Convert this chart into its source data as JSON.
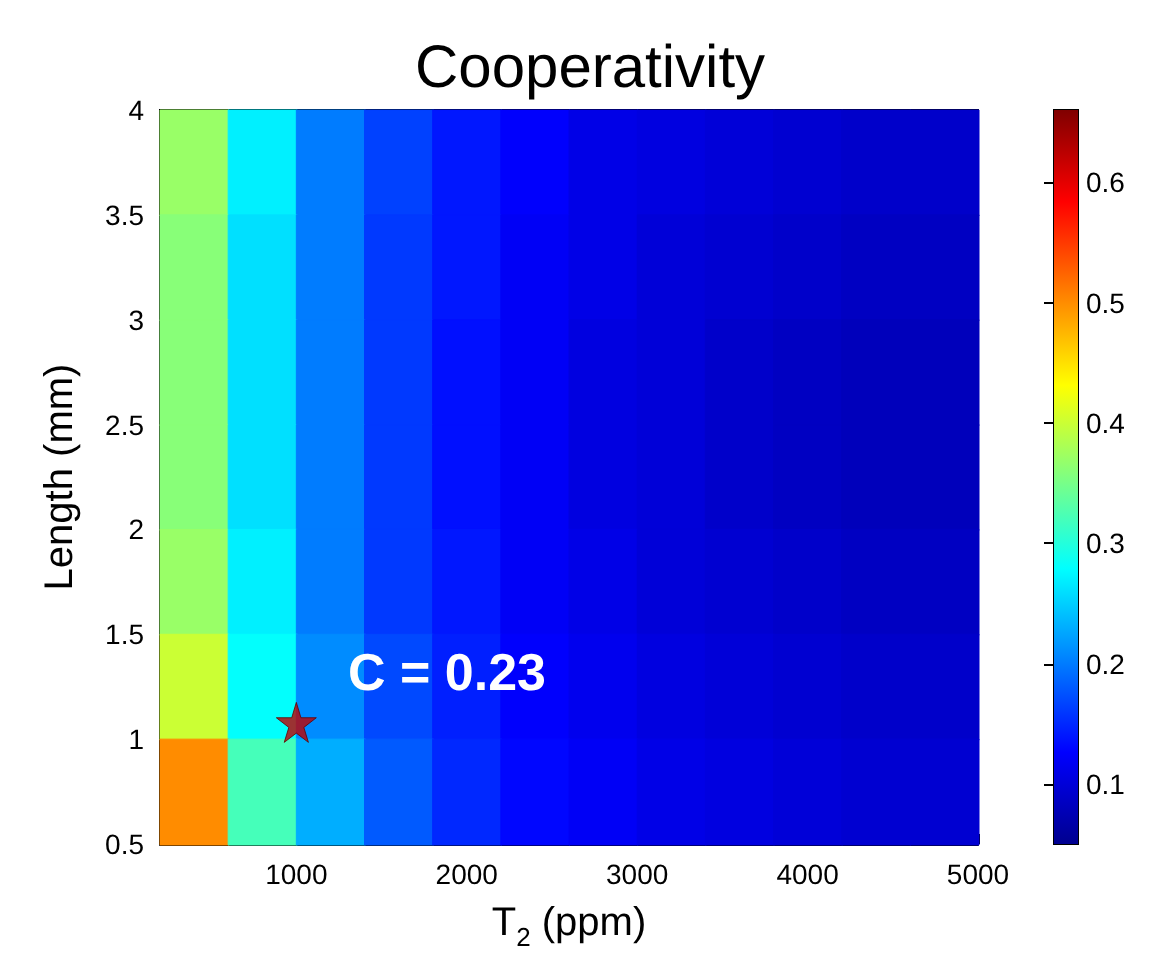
{
  "chart_data": {
    "type": "heatmap",
    "title": "Cooperativity",
    "xlabel": "T$_{2}$ (ppm)",
    "ylabel": "Length (mm)",
    "x": [
      400,
      800,
      1200,
      1600,
      2000,
      2400,
      2800,
      3200,
      3600,
      4000,
      4400,
      4800
    ],
    "y": [
      3.75,
      3.25,
      2.75,
      2.25,
      1.75,
      1.25,
      0.75
    ],
    "xlim": [
      200,
      5000
    ],
    "xticks": [
      1000,
      2000,
      3000,
      4000,
      5000
    ],
    "ylim": [
      0.5,
      4
    ],
    "yticks": [
      0.5,
      1,
      1.5,
      2,
      2.5,
      3,
      3.5,
      4
    ],
    "clim": [
      0.05,
      0.66
    ],
    "cticks": [
      0.1,
      0.2,
      0.3,
      0.4,
      0.5,
      0.6
    ],
    "cells": [
      [
        0.37,
        0.27,
        0.2,
        0.165,
        0.14,
        0.125,
        0.11,
        0.105,
        0.1,
        0.095,
        0.09,
        0.09
      ],
      [
        0.36,
        0.26,
        0.2,
        0.16,
        0.14,
        0.12,
        0.11,
        0.1,
        0.095,
        0.09,
        0.085,
        0.085
      ],
      [
        0.36,
        0.26,
        0.2,
        0.16,
        0.135,
        0.12,
        0.105,
        0.1,
        0.09,
        0.085,
        0.08,
        0.08
      ],
      [
        0.36,
        0.26,
        0.2,
        0.16,
        0.135,
        0.12,
        0.105,
        0.1,
        0.09,
        0.085,
        0.08,
        0.08
      ],
      [
        0.37,
        0.27,
        0.2,
        0.16,
        0.14,
        0.12,
        0.11,
        0.1,
        0.095,
        0.09,
        0.085,
        0.085
      ],
      [
        0.4,
        0.28,
        0.21,
        0.17,
        0.145,
        0.125,
        0.115,
        0.105,
        0.1,
        0.095,
        0.09,
        0.09
      ],
      [
        0.5,
        0.32,
        0.23,
        0.18,
        0.15,
        0.13,
        0.12,
        0.11,
        0.105,
        0.1,
        0.095,
        0.095
      ]
    ],
    "series": [
      {
        "type": "scatter",
        "x": [
          1000
        ],
        "values": [
          1.08
        ],
        "color": "#c00000"
      }
    ],
    "marker": "star",
    "annotations": [
      "C = 0.23"
    ]
  }
}
